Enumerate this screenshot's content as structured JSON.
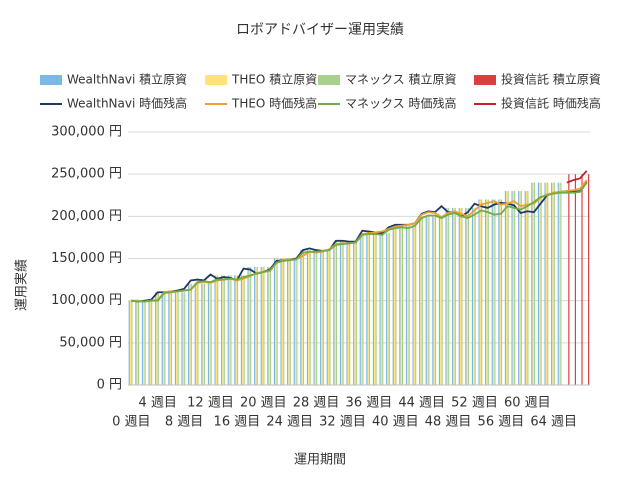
{
  "chart_data": {
    "type": "combo",
    "title": "ロボアドバイザー運用実績",
    "x_label": "運用期間",
    "y_label": "運用実績",
    "categories": [
      "0 週目",
      null,
      null,
      null,
      "4 週目",
      null,
      null,
      null,
      "8 週目",
      null,
      null,
      null,
      "12 週目",
      null,
      null,
      null,
      "16 週目",
      null,
      null,
      null,
      "20 週目",
      null,
      null,
      null,
      "24 週目",
      null,
      null,
      null,
      "28 週目",
      null,
      null,
      null,
      "32 週目",
      null,
      null,
      null,
      "36 週目",
      null,
      null,
      null,
      "40 週目",
      null,
      null,
      null,
      "44 週目",
      null,
      null,
      null,
      "48 週目",
      null,
      null,
      null,
      "52 週目",
      null,
      null,
      null,
      "56 週目",
      null,
      null,
      null,
      "60 週目",
      null,
      null,
      null,
      "64 週目",
      null,
      null,
      null,
      null,
      null
    ],
    "ylim": [
      0,
      300000
    ],
    "yticks": [
      {
        "value": 0,
        "label": "0 円"
      },
      {
        "value": 50000,
        "label": "50,000 円"
      },
      {
        "value": 100000,
        "label": "100,000 円"
      },
      {
        "value": 150000,
        "label": "150,000 円"
      },
      {
        "value": 200000,
        "label": "200,000 円"
      },
      {
        "value": 250000,
        "label": "250,000 円"
      },
      {
        "value": 300000,
        "label": "300,000 円"
      }
    ],
    "grid": true,
    "series": [
      {
        "name": "WealthNavi 積立原資",
        "type": "bar",
        "color": "#7cb8e4",
        "values": [
          100000,
          100000,
          100000,
          100000,
          110000,
          110000,
          110000,
          110000,
          110000,
          120000,
          120000,
          120000,
          120000,
          130000,
          130000,
          130000,
          130000,
          130000,
          140000,
          140000,
          140000,
          140000,
          150000,
          150000,
          150000,
          150000,
          160000,
          160000,
          160000,
          160000,
          160000,
          170000,
          170000,
          170000,
          170000,
          180000,
          180000,
          180000,
          180000,
          180000,
          190000,
          190000,
          190000,
          190000,
          200000,
          200000,
          200000,
          200000,
          210000,
          210000,
          210000,
          210000,
          210000,
          220000,
          220000,
          220000,
          220000,
          230000,
          230000,
          230000,
          230000,
          240000,
          240000,
          240000,
          240000,
          240000,
          null,
          null,
          null,
          null
        ]
      },
      {
        "name": "THEO 積立原資",
        "type": "bar",
        "color": "#ffe37a",
        "values": [
          100000,
          100000,
          100000,
          100000,
          110000,
          110000,
          110000,
          110000,
          110000,
          120000,
          120000,
          120000,
          120000,
          130000,
          130000,
          130000,
          130000,
          130000,
          140000,
          140000,
          140000,
          140000,
          150000,
          150000,
          150000,
          150000,
          160000,
          160000,
          160000,
          160000,
          160000,
          170000,
          170000,
          170000,
          170000,
          180000,
          180000,
          180000,
          180000,
          180000,
          190000,
          190000,
          190000,
          190000,
          200000,
          200000,
          200000,
          200000,
          210000,
          210000,
          210000,
          210000,
          210000,
          220000,
          220000,
          220000,
          220000,
          230000,
          230000,
          230000,
          230000,
          240000,
          240000,
          240000,
          240000,
          240000,
          null,
          null,
          null,
          null
        ]
      },
      {
        "name": "マネックス 積立原資",
        "type": "bar",
        "color": "#a9d18e",
        "values": [
          100000,
          100000,
          100000,
          100000,
          110000,
          110000,
          110000,
          110000,
          110000,
          120000,
          120000,
          120000,
          120000,
          130000,
          130000,
          130000,
          130000,
          130000,
          140000,
          140000,
          140000,
          140000,
          150000,
          150000,
          150000,
          150000,
          160000,
          160000,
          160000,
          160000,
          160000,
          170000,
          170000,
          170000,
          170000,
          180000,
          180000,
          180000,
          180000,
          180000,
          190000,
          190000,
          190000,
          190000,
          200000,
          200000,
          200000,
          200000,
          210000,
          210000,
          210000,
          210000,
          210000,
          220000,
          220000,
          220000,
          220000,
          230000,
          230000,
          230000,
          230000,
          240000,
          240000,
          240000,
          240000,
          240000,
          null,
          null,
          null,
          null
        ]
      },
      {
        "name": "投資信託 積立原資",
        "type": "bar",
        "color": "#d94040",
        "values": [
          null,
          null,
          null,
          null,
          null,
          null,
          null,
          null,
          null,
          null,
          null,
          null,
          null,
          null,
          null,
          null,
          null,
          null,
          null,
          null,
          null,
          null,
          null,
          null,
          null,
          null,
          null,
          null,
          null,
          null,
          null,
          null,
          null,
          null,
          null,
          null,
          null,
          null,
          null,
          null,
          null,
          null,
          null,
          null,
          null,
          null,
          null,
          null,
          null,
          null,
          null,
          null,
          null,
          null,
          null,
          null,
          null,
          null,
          null,
          null,
          null,
          null,
          null,
          null,
          null,
          null,
          250000,
          250000,
          250000,
          250000
        ]
      },
      {
        "name": "WealthNavi 時価残高",
        "type": "line",
        "color": "#203864",
        "values": [
          100000,
          99000,
          100000,
          101000,
          110000,
          110000,
          111000,
          112000,
          114000,
          124000,
          125000,
          124000,
          131000,
          126000,
          128000,
          127000,
          124000,
          138000,
          137000,
          132000,
          134000,
          137000,
          147000,
          148000,
          149000,
          150000,
          160000,
          162000,
          160000,
          159000,
          160000,
          171000,
          171000,
          170000,
          170000,
          183000,
          182000,
          181000,
          180000,
          187000,
          190000,
          190000,
          190000,
          192000,
          203000,
          206000,
          205000,
          212000,
          205000,
          205000,
          200000,
          205000,
          215000,
          212000,
          210000,
          214000,
          216000,
          215000,
          213000,
          204000,
          206000,
          205000,
          215000,
          225000,
          228000,
          229000,
          230000,
          229000,
          230000,
          241000
        ]
      },
      {
        "name": "THEO 時価残高",
        "type": "line",
        "color": "#f0a030",
        "values": [
          100000,
          100000,
          99000,
          100000,
          101000,
          110000,
          111000,
          111000,
          112000,
          113000,
          121000,
          122000,
          121000,
          124000,
          125000,
          126000,
          124000,
          126000,
          129000,
          133000,
          134000,
          135000,
          145000,
          148000,
          149000,
          149000,
          153000,
          158000,
          157000,
          158000,
          161000,
          167000,
          168000,
          168000,
          169000,
          179000,
          180000,
          181000,
          182000,
          185000,
          188000,
          189000,
          190000,
          192000,
          202000,
          205000,
          204000,
          199000,
          204000,
          206000,
          203000,
          200000,
          207000,
          214000,
          216000,
          218000,
          214000,
          215000,
          218000,
          212000,
          214000,
          215000,
          222000,
          226000,
          228000,
          229000,
          230000,
          231000,
          233000,
          243000
        ]
      },
      {
        "name": "マネックス 時価残高",
        "type": "line",
        "color": "#70ad47",
        "values": [
          100000,
          99000,
          99000,
          100000,
          100000,
          109000,
          110000,
          111000,
          112000,
          113000,
          122000,
          123000,
          122000,
          125000,
          125000,
          126000,
          125000,
          128000,
          130000,
          132000,
          134000,
          136000,
          145000,
          147000,
          148000,
          149000,
          157000,
          158000,
          158000,
          159000,
          160000,
          166000,
          167000,
          168000,
          169000,
          178000,
          179000,
          179000,
          178000,
          184000,
          186000,
          187000,
          186000,
          189000,
          198000,
          201000,
          201000,
          198000,
          202000,
          204000,
          200000,
          198000,
          202000,
          207000,
          205000,
          202000,
          203000,
          212000,
          210000,
          208000,
          212000,
          217000,
          223000,
          225000,
          227000,
          228000,
          228000,
          228000,
          229000,
          240000
        ]
      },
      {
        "name": "投資信託 時価残高",
        "type": "line",
        "color": "#c0202c",
        "values": [
          null,
          null,
          null,
          null,
          null,
          null,
          null,
          null,
          null,
          null,
          null,
          null,
          null,
          null,
          null,
          null,
          null,
          null,
          null,
          null,
          null,
          null,
          null,
          null,
          null,
          null,
          null,
          null,
          null,
          null,
          null,
          null,
          null,
          null,
          null,
          null,
          null,
          null,
          null,
          null,
          null,
          null,
          null,
          null,
          null,
          null,
          null,
          null,
          null,
          null,
          null,
          null,
          null,
          null,
          null,
          null,
          null,
          null,
          null,
          null,
          null,
          null,
          null,
          null,
          null,
          null,
          240000,
          243000,
          245000,
          254000
        ]
      }
    ]
  }
}
